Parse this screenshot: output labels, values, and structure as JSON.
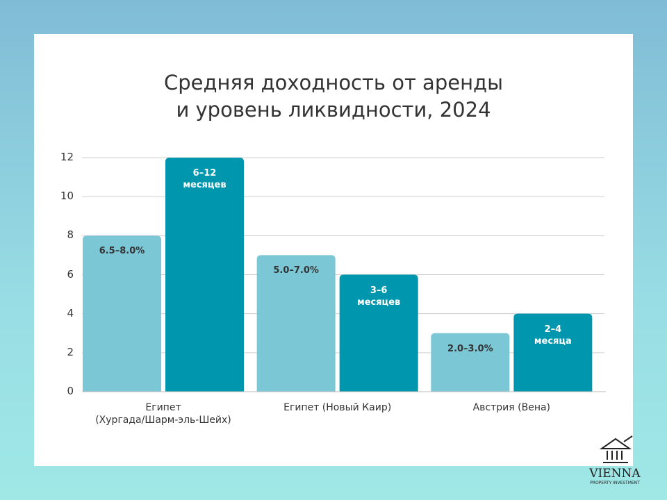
{
  "chart_data": {
    "type": "bar",
    "title": "Средняя доходность от аренды\nи уровень ликвидности, 2024",
    "categories": [
      "Египет\n(Хургада/Шарм-эль-Шейх)",
      "Египет (Новый Каир)",
      "Австрия (Вена)"
    ],
    "series": [
      {
        "color": "#7cc7d6",
        "values": [
          8,
          7,
          3
        ],
        "value_labels": [
          "6.5–8.0%",
          "5.0–7.0%",
          "2.0–3.0%"
        ],
        "label_color": "#333333"
      },
      {
        "color": "#0096ae",
        "values": [
          12,
          6,
          4
        ],
        "value_labels": [
          "6–12\nмесяцев",
          "3–6\nмесяцев",
          "2–4\nмесяца"
        ],
        "label_color": "#ffffff"
      }
    ],
    "ylim": [
      0,
      12
    ],
    "yticks": [
      0,
      2,
      4,
      6,
      8,
      10,
      12
    ],
    "grid": true
  },
  "logo": {
    "name": "VIENNA",
    "tagline": "PROPERTY INVESTMENT"
  }
}
